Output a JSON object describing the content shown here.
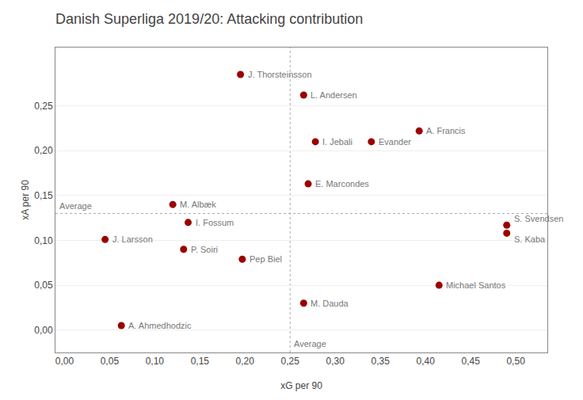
{
  "chart_data": {
    "type": "scatter",
    "title": "Danish Superliga 2019/20: Attacking contribution",
    "xlabel": "xG per 90",
    "ylabel": "xA per 90",
    "color": "#9B0000",
    "labels": [
      "J. Thorsteinsson",
      "L. Andersen",
      "I. Jebali",
      "Evander",
      "A. Francis",
      "E. Marcondes",
      "M. Albæk",
      "I. Fossum",
      "J. Larsson",
      "P. Soiri",
      "Pep Biel",
      "S. Svendsen",
      "S. Kaba",
      "Michael Santos",
      "M. Dauda",
      "A. Ahmedhodzic"
    ],
    "x": [
      0.195,
      0.265,
      0.278,
      0.34,
      0.393,
      0.27,
      0.12,
      0.137,
      0.045,
      0.132,
      0.197,
      0.49,
      0.49,
      0.415,
      0.265,
      0.063
    ],
    "values": [
      0.285,
      0.262,
      0.21,
      0.21,
      0.222,
      0.163,
      0.14,
      0.12,
      0.101,
      0.09,
      0.079,
      0.117,
      0.108,
      0.05,
      0.03,
      0.005
    ],
    "reference_lines": [
      {
        "axis": "y",
        "value": 0.13,
        "label": "Average"
      },
      {
        "axis": "x",
        "value": 0.25,
        "label": "Average"
      }
    ],
    "xlim": [
      -0.01,
      0.535
    ],
    "ylim": [
      -0.025,
      0.315
    ],
    "xticks": [
      {
        "value": 0.0,
        "label": "0,00"
      },
      {
        "value": 0.05,
        "label": "0,05"
      },
      {
        "value": 0.1,
        "label": "0,10"
      },
      {
        "value": 0.15,
        "label": "0,15"
      },
      {
        "value": 0.2,
        "label": "0,20"
      },
      {
        "value": 0.25,
        "label": "0,25"
      },
      {
        "value": 0.3,
        "label": "0,30"
      },
      {
        "value": 0.35,
        "label": "0,35"
      },
      {
        "value": 0.4,
        "label": "0,40"
      },
      {
        "value": 0.45,
        "label": "0,45"
      },
      {
        "value": 0.5,
        "label": "0,50"
      }
    ],
    "yticks": [
      {
        "value": 0.0,
        "label": "0,00"
      },
      {
        "value": 0.05,
        "label": "0,05"
      },
      {
        "value": 0.1,
        "label": "0,10"
      },
      {
        "value": 0.15,
        "label": "0,15"
      },
      {
        "value": 0.2,
        "label": "0,20"
      },
      {
        "value": 0.25,
        "label": "0,25"
      }
    ],
    "grid": "y"
  }
}
